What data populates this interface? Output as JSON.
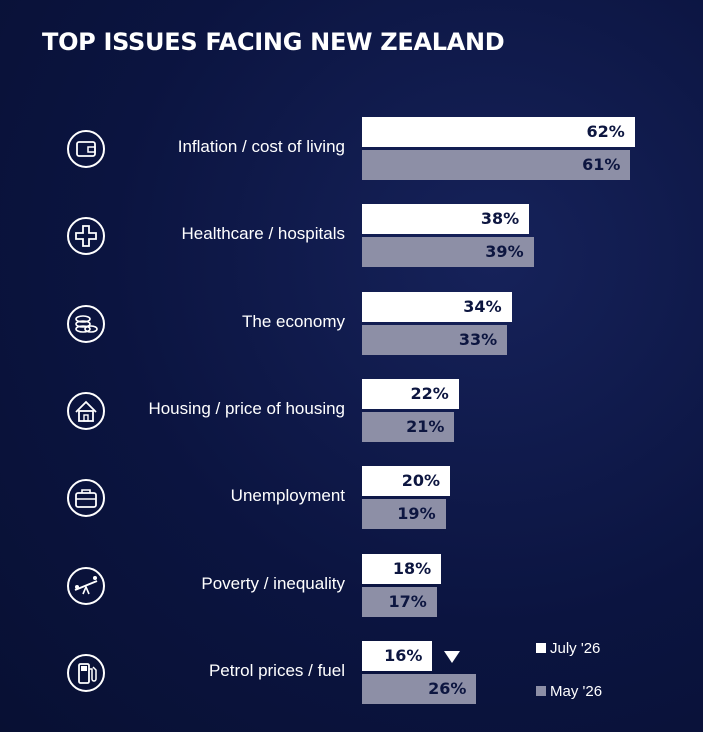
{
  "title": "TOP ISSUES FACING NEW ZEALAND",
  "chart_data": {
    "type": "bar",
    "orientation": "horizontal",
    "title": "TOP ISSUES FACING NEW ZEALAND",
    "categories": [
      "Inflation / cost of living",
      "Healthcare / hospitals",
      "The economy",
      "Housing / price of housing",
      "Unemployment",
      "Poverty / inequality",
      "Petrol prices / fuel"
    ],
    "icons": [
      "wallet-icon",
      "medical-cross-icon",
      "coins-icon",
      "house-icon",
      "briefcase-icon",
      "seesaw-icon",
      "fuel-pump-icon"
    ],
    "series": [
      {
        "name": "July '26",
        "values": [
          62,
          38,
          34,
          22,
          20,
          18,
          16
        ],
        "labels": [
          "62%",
          "38%",
          "34%",
          "22%",
          "20%",
          "18%",
          "16%"
        ],
        "color": "#ffffff"
      },
      {
        "name": "May '26",
        "values": [
          61,
          39,
          33,
          21,
          19,
          17,
          26
        ],
        "labels": [
          "61%",
          "39%",
          "33%",
          "21%",
          "19%",
          "17%",
          "26%"
        ],
        "color": "#8d8fa6"
      }
    ],
    "annotations": [
      {
        "category": "Petrol prices / fuel",
        "marker": "down-triangle-icon"
      }
    ],
    "legend": "bottom-right",
    "grid": false
  }
}
